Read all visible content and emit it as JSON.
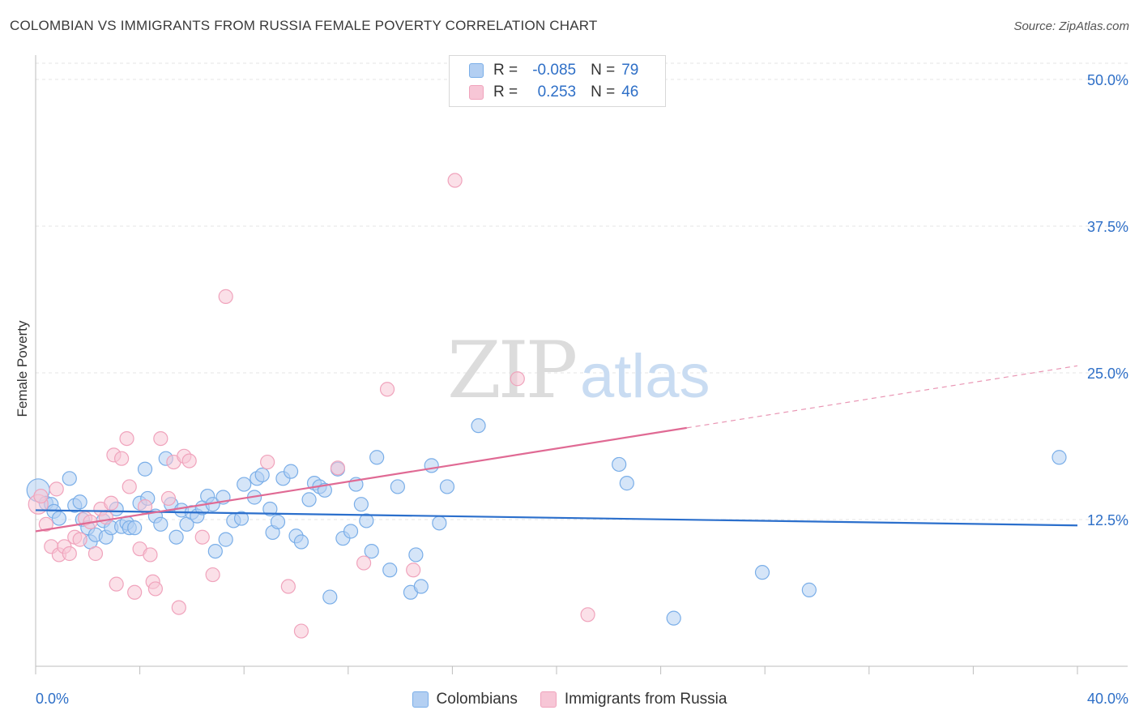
{
  "chart_data": {
    "type": "scatter",
    "title": "COLOMBIAN VS IMMIGRANTS FROM RUSSIA FEMALE POVERTY CORRELATION CHART",
    "source": "Source: ZipAtlas.com",
    "ylabel": "Female Poverty",
    "xlabel": "",
    "xlim": [
      0,
      40
    ],
    "ylim": [
      0,
      50
    ],
    "x_tick_labels": {
      "min": "0.0%",
      "max": "40.0%"
    },
    "y_ticks": [
      {
        "value": 12.5,
        "label": "12.5%"
      },
      {
        "value": 25.0,
        "label": "25.0%"
      },
      {
        "value": 37.5,
        "label": "37.5%"
      },
      {
        "value": 50.0,
        "label": "50.0%"
      }
    ],
    "watermark": {
      "part1": "ZIP",
      "part2": "atlas"
    },
    "legend": [
      {
        "r_label": "R =",
        "r_value": "-0.085",
        "n_label": "N =",
        "n_value": "79"
      },
      {
        "r_label": "R =",
        "r_value": "0.253",
        "n_label": "N =",
        "n_value": "46"
      }
    ],
    "series": [
      {
        "name": "Colombians",
        "color": "#7aaee8",
        "fill": "#b3cff2",
        "line_color": "#2b6fcc",
        "trend": {
          "x0": 0,
          "y0": 13.3,
          "x1": 40,
          "y1": 12.0,
          "solid_until": 40
        },
        "points": [
          [
            0.1,
            15.0
          ],
          [
            0.4,
            13.9
          ],
          [
            0.6,
            13.8
          ],
          [
            0.7,
            13.2
          ],
          [
            0.9,
            12.6
          ],
          [
            1.3,
            16.0
          ],
          [
            1.5,
            13.7
          ],
          [
            1.7,
            14.0
          ],
          [
            1.8,
            12.5
          ],
          [
            2.0,
            11.8
          ],
          [
            2.1,
            10.6
          ],
          [
            2.3,
            11.2
          ],
          [
            2.6,
            12.4
          ],
          [
            2.7,
            11.0
          ],
          [
            2.9,
            11.8
          ],
          [
            3.1,
            13.4
          ],
          [
            3.3,
            11.9
          ],
          [
            3.5,
            12.2
          ],
          [
            3.6,
            11.8
          ],
          [
            3.8,
            11.8
          ],
          [
            4.0,
            13.9
          ],
          [
            4.2,
            16.8
          ],
          [
            4.3,
            14.3
          ],
          [
            4.6,
            12.8
          ],
          [
            4.8,
            12.1
          ],
          [
            5.0,
            17.7
          ],
          [
            5.2,
            13.8
          ],
          [
            5.4,
            11.0
          ],
          [
            5.6,
            13.3
          ],
          [
            5.8,
            12.1
          ],
          [
            6.0,
            13.1
          ],
          [
            6.2,
            12.8
          ],
          [
            6.4,
            13.5
          ],
          [
            6.6,
            14.5
          ],
          [
            6.8,
            13.8
          ],
          [
            6.9,
            9.8
          ],
          [
            7.2,
            14.4
          ],
          [
            7.3,
            10.8
          ],
          [
            7.6,
            12.4
          ],
          [
            7.9,
            12.6
          ],
          [
            8.0,
            15.5
          ],
          [
            8.4,
            14.4
          ],
          [
            8.5,
            16.0
          ],
          [
            8.7,
            16.3
          ],
          [
            9.0,
            13.4
          ],
          [
            9.1,
            11.4
          ],
          [
            9.3,
            12.3
          ],
          [
            9.5,
            16.0
          ],
          [
            9.8,
            16.6
          ],
          [
            10.0,
            11.1
          ],
          [
            10.2,
            10.6
          ],
          [
            10.5,
            14.2
          ],
          [
            10.7,
            15.6
          ],
          [
            10.9,
            15.3
          ],
          [
            11.1,
            15.0
          ],
          [
            11.3,
            5.9
          ],
          [
            11.6,
            16.8
          ],
          [
            11.8,
            10.9
          ],
          [
            12.1,
            11.5
          ],
          [
            12.3,
            15.5
          ],
          [
            12.5,
            13.8
          ],
          [
            12.7,
            12.4
          ],
          [
            12.9,
            9.8
          ],
          [
            13.1,
            17.8
          ],
          [
            13.6,
            8.2
          ],
          [
            13.9,
            15.3
          ],
          [
            14.4,
            6.3
          ],
          [
            14.6,
            9.5
          ],
          [
            14.8,
            6.8
          ],
          [
            15.2,
            17.1
          ],
          [
            15.5,
            12.2
          ],
          [
            15.8,
            15.3
          ],
          [
            17.0,
            20.5
          ],
          [
            22.4,
            17.2
          ],
          [
            22.7,
            15.6
          ],
          [
            24.5,
            4.1
          ],
          [
            27.9,
            8.0
          ],
          [
            29.7,
            6.5
          ],
          [
            39.3,
            17.8
          ]
        ]
      },
      {
        "name": "Immigrants from Russia",
        "color": "#f0a3bc",
        "fill": "#f7c6d6",
        "line_color": "#e06a94",
        "trend": {
          "x0": 0,
          "y0": 11.5,
          "x1": 40,
          "y1": 25.6,
          "solid_until": 25.0
        },
        "points": [
          [
            0.1,
            13.8
          ],
          [
            0.2,
            14.5
          ],
          [
            0.4,
            12.1
          ],
          [
            0.6,
            10.2
          ],
          [
            0.8,
            15.1
          ],
          [
            0.9,
            9.5
          ],
          [
            1.1,
            10.2
          ],
          [
            1.3,
            9.6
          ],
          [
            1.5,
            11.0
          ],
          [
            1.7,
            10.8
          ],
          [
            1.9,
            12.6
          ],
          [
            2.1,
            12.3
          ],
          [
            2.3,
            9.6
          ],
          [
            2.5,
            13.4
          ],
          [
            2.7,
            12.7
          ],
          [
            2.9,
            13.9
          ],
          [
            3.0,
            18.0
          ],
          [
            3.1,
            7.0
          ],
          [
            3.3,
            17.7
          ],
          [
            3.5,
            19.4
          ],
          [
            3.6,
            15.3
          ],
          [
            3.8,
            6.3
          ],
          [
            4.0,
            10.0
          ],
          [
            4.2,
            13.6
          ],
          [
            4.4,
            9.5
          ],
          [
            4.5,
            7.2
          ],
          [
            4.6,
            6.6
          ],
          [
            4.8,
            19.4
          ],
          [
            5.1,
            14.3
          ],
          [
            5.3,
            17.4
          ],
          [
            5.5,
            5.0
          ],
          [
            5.7,
            17.9
          ],
          [
            5.9,
            17.5
          ],
          [
            6.4,
            11.0
          ],
          [
            6.8,
            7.8
          ],
          [
            7.3,
            31.5
          ],
          [
            8.9,
            17.4
          ],
          [
            9.7,
            6.8
          ],
          [
            10.2,
            3.0
          ],
          [
            11.6,
            16.9
          ],
          [
            12.6,
            8.8
          ],
          [
            13.5,
            23.6
          ],
          [
            14.5,
            8.2
          ],
          [
            16.1,
            41.4
          ],
          [
            18.5,
            24.5
          ],
          [
            21.2,
            4.4
          ]
        ]
      }
    ]
  }
}
